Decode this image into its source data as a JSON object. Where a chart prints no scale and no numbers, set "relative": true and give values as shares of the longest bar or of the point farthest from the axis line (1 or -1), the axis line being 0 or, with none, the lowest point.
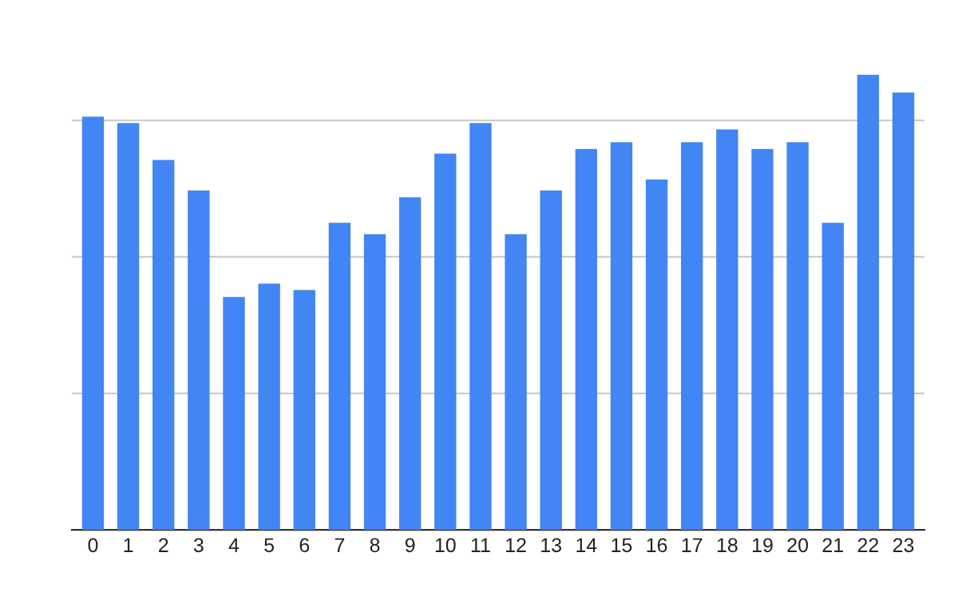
{
  "chart_data": {
    "type": "bar",
    "relative": true,
    "grid": "y",
    "categories": [
      "0",
      "1",
      "2",
      "3",
      "4",
      "5",
      "6",
      "7",
      "8",
      "9",
      "10",
      "11",
      "12",
      "13",
      "14",
      "15",
      "16",
      "17",
      "18",
      "19",
      "20",
      "21",
      "22",
      "23"
    ],
    "values": [
      0.908,
      0.894,
      0.813,
      0.746,
      0.512,
      0.541,
      0.527,
      0.675,
      0.65,
      0.731,
      0.827,
      0.894,
      0.65,
      0.746,
      0.837,
      0.852,
      0.77,
      0.852,
      0.88,
      0.837,
      0.852,
      0.675,
      1,
      0.961
    ],
    "color": "#4285f4"
  }
}
